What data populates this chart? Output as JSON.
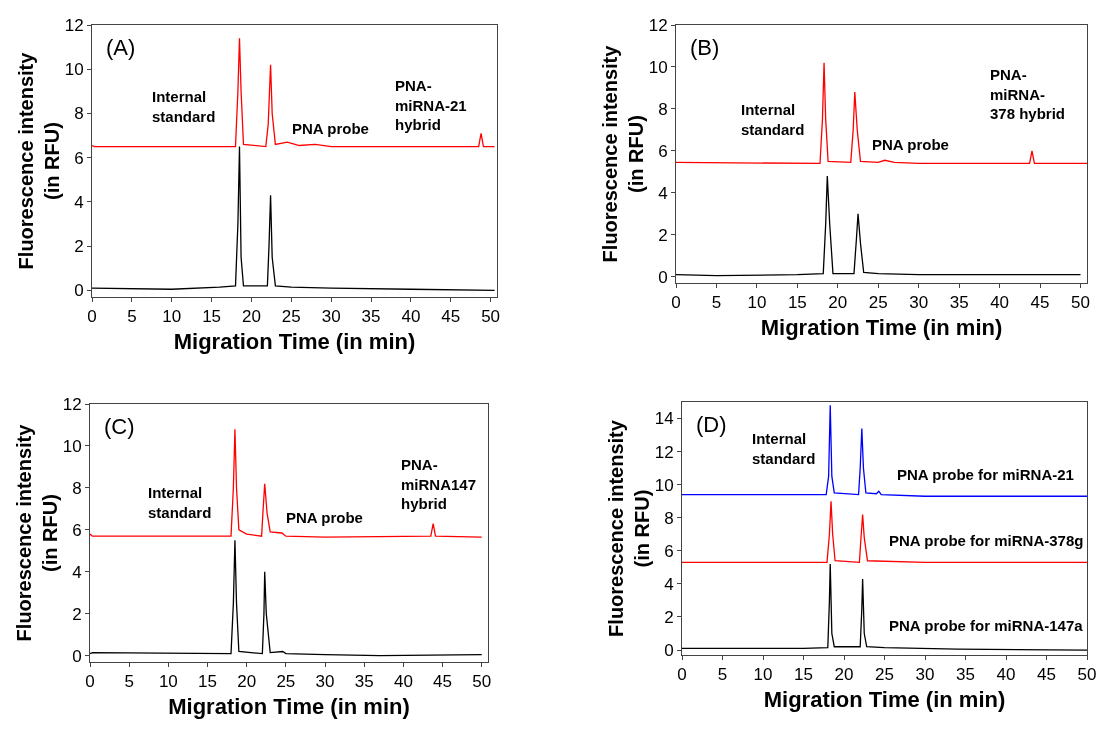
{
  "chart_data": [
    {
      "type": "line",
      "xlabel": "Migration Time (in min)",
      "ylabel": "Fluorescence intensity (in RFU)",
      "xlim": [
        0,
        50.8
      ],
      "ylim": [
        -0.3,
        12
      ],
      "xticks": [
        0,
        5,
        10,
        15,
        20,
        25,
        30,
        35,
        40,
        45,
        50
      ],
      "yticks": [
        0,
        2,
        4,
        6,
        8,
        10,
        12
      ],
      "grid": false,
      "marker": "none",
      "line_style": "solid",
      "annotations": [
        "(A)",
        "Internal\nstandard",
        "PNA probe",
        "PNA-\nmiRNA-21\nhybrid"
      ],
      "series": [
        {
          "color": "#ff0000",
          "x": [
            0,
            0.3,
            18,
            18.3,
            18.5,
            18.7,
            19,
            21.8,
            22.1,
            22.4,
            22.6,
            23,
            24.5,
            26,
            28,
            30,
            48.5,
            48.8,
            49.1,
            50.5
          ],
          "values": [
            6.55,
            6.5,
            6.5,
            9,
            11.4,
            9,
            6.6,
            6.5,
            7.5,
            10.2,
            8,
            6.6,
            6.7,
            6.55,
            6.6,
            6.5,
            6.5,
            7.1,
            6.5,
            6.5
          ]
        },
        {
          "color": "#000000",
          "x": [
            0,
            10,
            16,
            18,
            18.3,
            18.5,
            18.7,
            19,
            22,
            22.2,
            22.4,
            22.6,
            23,
            25,
            30,
            40,
            50.5
          ],
          "values": [
            0.1,
            0.05,
            0.15,
            0.2,
            3,
            6.5,
            1.5,
            0.2,
            0.2,
            2,
            4.3,
            1.5,
            0.2,
            0.15,
            0.1,
            0.05,
            0
          ]
        }
      ]
    },
    {
      "type": "line",
      "xlabel": "Migration Time (in min)",
      "ylabel": "Fluorescence intensity (in RFU)",
      "xlim": [
        0,
        50.8
      ],
      "ylim": [
        -0.3,
        12
      ],
      "xticks": [
        0,
        5,
        10,
        15,
        20,
        25,
        30,
        35,
        40,
        45,
        50
      ],
      "yticks": [
        0,
        2,
        4,
        6,
        8,
        10,
        12
      ],
      "grid": false,
      "marker": "none",
      "line_style": "solid",
      "annotations": [
        "(B)",
        "Internal\nstandard",
        "PNA probe",
        "PNA-\nmiRNA-\n378 hybrid"
      ],
      "series": [
        {
          "color": "#ff0000",
          "x": [
            0,
            17.8,
            18.1,
            18.3,
            18.5,
            18.8,
            21.6,
            21.9,
            22.1,
            22.4,
            22.8,
            25,
            25.8,
            27,
            30,
            43.7,
            44,
            44.3,
            50.8
          ],
          "values": [
            5.45,
            5.4,
            7.5,
            10.2,
            7.5,
            5.5,
            5.45,
            7,
            8.8,
            7,
            5.5,
            5.45,
            5.55,
            5.45,
            5.4,
            5.4,
            6,
            5.4,
            5.4
          ]
        },
        {
          "color": "#000000",
          "x": [
            0,
            5,
            15,
            18.2,
            18.5,
            18.7,
            19,
            19.4,
            22,
            22.3,
            22.5,
            22.8,
            23.2,
            25,
            30,
            40,
            50
          ],
          "values": [
            0.1,
            0.05,
            0.1,
            0.15,
            2.5,
            4.8,
            2.5,
            0.15,
            0.15,
            1.8,
            3,
            1.6,
            0.2,
            0.15,
            0.1,
            0.1,
            0.1
          ]
        }
      ]
    },
    {
      "type": "line",
      "xlabel": "Migration Time (in min)",
      "ylabel": "Fluorescence intensity (in RFU)",
      "xlim": [
        0,
        50.8
      ],
      "ylim": [
        -0.3,
        12
      ],
      "xticks": [
        0,
        5,
        10,
        15,
        20,
        25,
        30,
        35,
        40,
        45,
        50
      ],
      "yticks": [
        0,
        2,
        4,
        6,
        8,
        10,
        12
      ],
      "grid": false,
      "marker": "none",
      "line_style": "solid",
      "annotations": [
        "(C)",
        "Internal\nstandard",
        "PNA probe",
        "PNA-\nmiRNA147\nhybrid"
      ],
      "series": [
        {
          "color": "#ff0000",
          "x": [
            0,
            0.3,
            18,
            18.3,
            18.5,
            18.7,
            19,
            20,
            21.9,
            22.1,
            22.3,
            22.6,
            23,
            24.5,
            25,
            30,
            43.5,
            43.8,
            44.1,
            50
          ],
          "values": [
            5.8,
            5.7,
            5.7,
            8,
            10.8,
            8,
            6,
            5.8,
            5.7,
            7,
            8.2,
            6.8,
            5.9,
            5.85,
            5.7,
            5.65,
            5.7,
            6.3,
            5.7,
            5.65
          ]
        },
        {
          "color": "#000000",
          "x": [
            0,
            0.3,
            18,
            18.3,
            18.5,
            18.7,
            19,
            22,
            22.2,
            22.3,
            22.5,
            23,
            24.6,
            25,
            30,
            37,
            50
          ],
          "values": [
            0.1,
            0.15,
            0.1,
            2.5,
            5.5,
            2.5,
            0.2,
            0.1,
            2,
            4,
            2,
            0.15,
            0.2,
            0.1,
            0.05,
            0,
            0.05
          ]
        }
      ]
    },
    {
      "type": "line",
      "xlabel": "Migration Time (in min)",
      "ylabel": "Fluorescence intensity (in RFU)",
      "xlim": [
        0,
        50
      ],
      "ylim": [
        -0.3,
        15
      ],
      "xticks": [
        0,
        5,
        10,
        15,
        20,
        25,
        30,
        35,
        40,
        45,
        50
      ],
      "yticks": [
        0,
        2,
        4,
        6,
        8,
        10,
        12,
        14
      ],
      "grid": false,
      "marker": "none",
      "line_style": "solid",
      "annotations": [
        "(D)",
        "Internal\nstandard",
        "PNA probe for miRNA-21",
        "PNA probe for miRNA-378g",
        "PNA probe for miRNA-147a"
      ],
      "series": [
        {
          "color": "#0000ff",
          "x": [
            0,
            17.8,
            18.1,
            18.3,
            18.5,
            18.8,
            21.8,
            22,
            22.2,
            22.4,
            22.7,
            24,
            24.3,
            24.6,
            30,
            50
          ],
          "values": [
            9.4,
            9.4,
            10.5,
            14.8,
            10.5,
            9.5,
            9.4,
            11,
            13.4,
            11,
            9.5,
            9.45,
            9.6,
            9.4,
            9.3,
            9.3
          ]
        },
        {
          "color": "#ff0000",
          "x": [
            0,
            17.9,
            18.2,
            18.4,
            18.6,
            18.9,
            21.9,
            22.1,
            22.3,
            22.5,
            22.9,
            30,
            50
          ],
          "values": [
            5.3,
            5.3,
            7,
            9,
            7,
            5.4,
            5.3,
            6.8,
            8.2,
            6.8,
            5.4,
            5.3,
            5.3
          ]
        },
        {
          "color": "#000000",
          "x": [
            0,
            15,
            18,
            18.2,
            18.3,
            18.5,
            18.8,
            22,
            22.2,
            22.3,
            22.5,
            22.8,
            25,
            34,
            50
          ],
          "values": [
            0.1,
            0.1,
            0.15,
            3,
            5.2,
            1,
            0.2,
            0.2,
            2.5,
            4.3,
            1,
            0.2,
            0.15,
            0.05,
            0
          ]
        }
      ]
    }
  ]
}
